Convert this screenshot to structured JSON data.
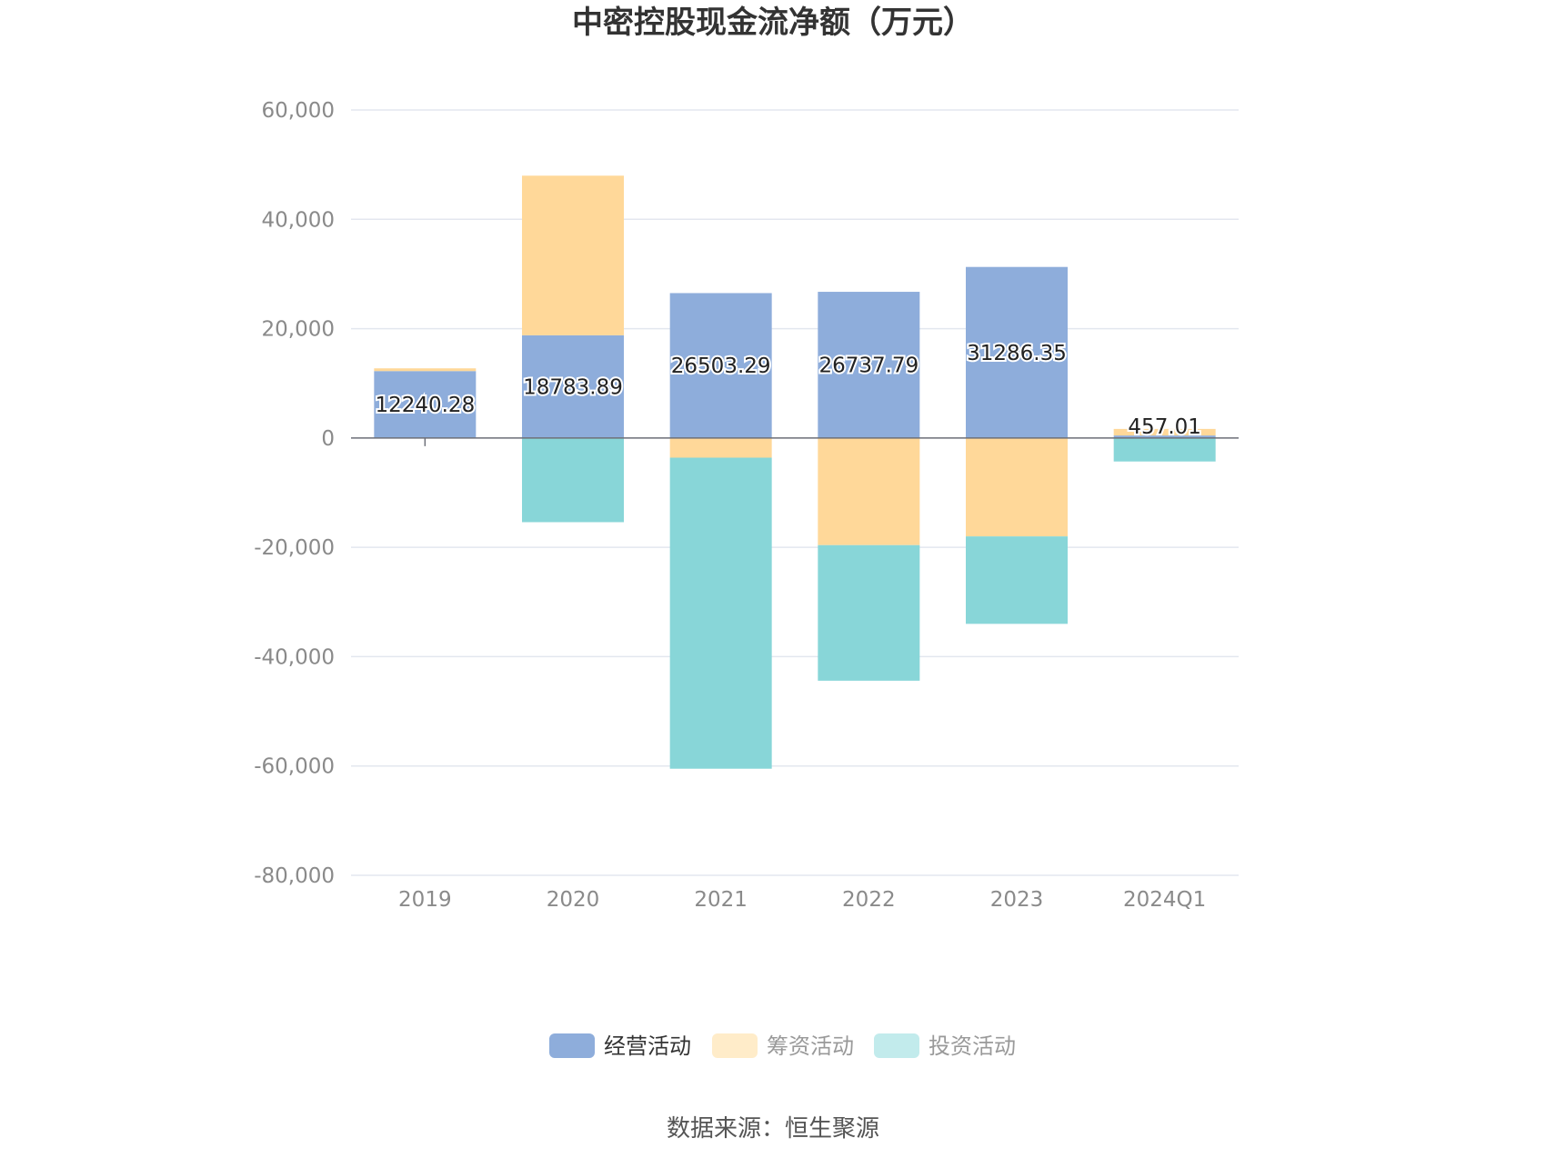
{
  "chart_data": {
    "type": "bar",
    "stacked": true,
    "title": "中密控股现金流净额（万元）",
    "categories": [
      "2019",
      "2020",
      "2021",
      "2022",
      "2023",
      "2024Q1"
    ],
    "series": [
      {
        "name": "经营活动",
        "color": "#8eaddb",
        "values": [
          12240.28,
          18783.89,
          26503.29,
          26737.79,
          31286.35,
          457.01
        ]
      },
      {
        "name": "筹资活动",
        "color": "#ffd899",
        "values": [
          500,
          29200,
          -3600,
          -19600,
          -18000,
          1200
        ]
      },
      {
        "name": "投资活动",
        "color": "#88d6d8",
        "values": [
          -100,
          -15400,
          -56900,
          -24800,
          -16000,
          -4300
        ]
      }
    ],
    "data_labels": [
      "12240.28",
      "18783.89",
      "26503.29",
      "26737.79",
      "31286.35",
      "457.01"
    ],
    "ylim": [
      -80000,
      60000
    ],
    "yticks": [
      60000,
      40000,
      20000,
      0,
      -20000,
      -40000,
      -60000,
      -80000
    ],
    "ytick_labels": [
      "60,000",
      "40,000",
      "20,000",
      "0",
      "-20,000",
      "-40,000",
      "-60,000",
      "-80,000"
    ],
    "grid": true,
    "legend_position": "bottom",
    "legend_colors": [
      "#8eaddb",
      "#ffecc9",
      "#c2ebec"
    ],
    "xlabel": "",
    "ylabel": ""
  },
  "source": "数据来源：恒生聚源"
}
